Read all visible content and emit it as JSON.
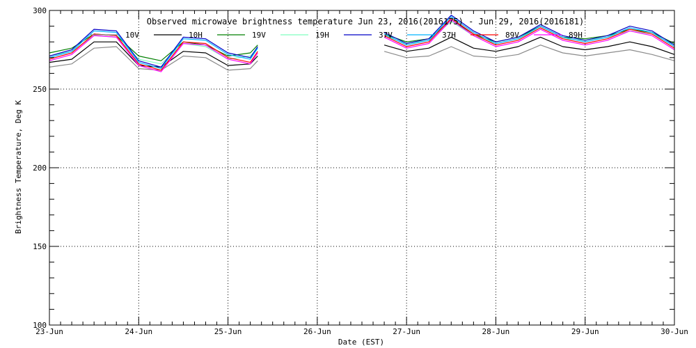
{
  "chart_data": {
    "type": "line",
    "title": "Observed microwave brightness temperature Jun 23, 2016(2016175) - Jun 29, 2016(2016181)",
    "xlabel": "Date (EST)",
    "ylabel": "Brightness Temperature, Deg K",
    "x_ticks": [
      "23-Jun",
      "24-Jun",
      "25-Jun",
      "26-Jun",
      "27-Jun",
      "28-Jun",
      "29-Jun",
      "30-Jun"
    ],
    "xlim": [
      "2016-06-23",
      "2016-06-30"
    ],
    "ylim": [
      100,
      300
    ],
    "y_ticks": [
      100,
      150,
      200,
      250,
      300
    ],
    "grid": true,
    "legend_position": "top",
    "series": [
      {
        "name": "10V",
        "color": "#8a8a8a",
        "x": [
          "2016-06-23T00:00",
          "2016-06-23T06:00",
          "2016-06-23T12:00",
          "2016-06-23T18:00",
          "2016-06-24T00:00",
          "2016-06-24T06:00",
          "2016-06-24T12:00",
          "2016-06-24T18:00",
          "2016-06-25T00:00",
          "2016-06-25T06:00",
          "2016-06-25T08:00",
          null,
          "2016-06-26T18:00",
          "2016-06-27T00:00",
          "2016-06-27T06:00",
          "2016-06-27T12:00",
          "2016-06-27T18:00",
          "2016-06-28T00:00",
          "2016-06-28T06:00",
          "2016-06-28T12:00",
          "2016-06-28T18:00",
          "2016-06-29T00:00",
          "2016-06-29T06:00",
          "2016-06-29T12:00",
          "2016-06-29T18:00",
          "2016-06-30T00:00"
        ],
        "values": [
          264,
          266,
          276,
          277,
          263,
          262,
          271,
          270,
          262,
          263,
          268,
          null,
          274,
          270,
          271,
          277,
          271,
          270,
          272,
          278,
          273,
          271,
          273,
          275,
          272,
          268
        ]
      },
      {
        "name": "10H",
        "color": "#000000",
        "x": [
          "2016-06-23T00:00",
          "2016-06-23T06:00",
          "2016-06-23T12:00",
          "2016-06-23T18:00",
          "2016-06-24T00:00",
          "2016-06-24T06:00",
          "2016-06-24T12:00",
          "2016-06-24T18:00",
          "2016-06-25T00:00",
          "2016-06-25T06:00",
          "2016-06-25T08:00",
          null,
          "2016-06-26T18:00",
          "2016-06-27T00:00",
          "2016-06-27T06:00",
          "2016-06-27T12:00",
          "2016-06-27T18:00",
          "2016-06-28T00:00",
          "2016-06-28T06:00",
          "2016-06-28T12:00",
          "2016-06-28T18:00",
          "2016-06-29T00:00",
          "2016-06-29T06:00",
          "2016-06-29T12:00",
          "2016-06-29T18:00",
          "2016-06-30T00:00"
        ],
        "values": [
          267,
          269,
          280,
          280,
          265,
          264,
          274,
          273,
          265,
          266,
          271,
          null,
          278,
          274,
          276,
          283,
          276,
          274,
          277,
          283,
          277,
          275,
          277,
          280,
          277,
          272
        ]
      },
      {
        "name": "19V",
        "color": "#007f00",
        "x": [
          "2016-06-23T00:00",
          "2016-06-23T06:00",
          "2016-06-23T12:00",
          "2016-06-23T18:00",
          "2016-06-24T00:00",
          "2016-06-24T06:00",
          "2016-06-24T12:00",
          "2016-06-24T18:00",
          "2016-06-25T00:00",
          "2016-06-25T06:00",
          "2016-06-25T08:00",
          null,
          "2016-06-26T18:00",
          "2016-06-27T00:00",
          "2016-06-27T06:00",
          "2016-06-27T12:00",
          "2016-06-27T18:00",
          "2016-06-28T00:00",
          "2016-06-28T06:00",
          "2016-06-28T12:00",
          "2016-06-28T18:00",
          "2016-06-29T00:00",
          "2016-06-29T06:00",
          "2016-06-29T12:00",
          "2016-06-29T18:00",
          "2016-06-30T00:00"
        ],
        "values": [
          273,
          276,
          285,
          284,
          271,
          268,
          280,
          278,
          271,
          273,
          278,
          null,
          285,
          280,
          282,
          294,
          285,
          280,
          283,
          290,
          283,
          282,
          284,
          288,
          286,
          279
        ]
      },
      {
        "name": "19H",
        "color": "#7fffbf",
        "x": [
          "2016-06-23T00:00",
          "2016-06-23T06:00",
          "2016-06-23T12:00",
          "2016-06-23T18:00",
          "2016-06-24T00:00",
          "2016-06-24T06:00",
          "2016-06-24T12:00",
          "2016-06-24T18:00",
          "2016-06-25T00:00",
          "2016-06-25T06:00",
          "2016-06-25T08:00",
          null,
          "2016-06-26T18:00",
          "2016-06-27T00:00",
          "2016-06-27T06:00",
          "2016-06-27T12:00",
          "2016-06-27T18:00",
          "2016-06-28T00:00",
          "2016-06-28T06:00",
          "2016-06-28T12:00",
          "2016-06-28T18:00",
          "2016-06-29T00:00",
          "2016-06-29T06:00",
          "2016-06-29T12:00",
          "2016-06-29T18:00",
          "2016-06-30T00:00"
        ],
        "values": [
          271,
          274,
          284,
          283,
          269,
          266,
          279,
          277,
          269,
          271,
          276,
          null,
          284,
          279,
          281,
          293,
          284,
          279,
          282,
          289,
          282,
          281,
          283,
          287,
          285,
          278
        ]
      },
      {
        "name": "37V",
        "color": "#0000c8",
        "x": [
          "2016-06-23T00:00",
          "2016-06-23T06:00",
          "2016-06-23T12:00",
          "2016-06-23T18:00",
          "2016-06-24T00:00",
          "2016-06-24T06:00",
          "2016-06-24T12:00",
          "2016-06-24T18:00",
          "2016-06-25T00:00",
          "2016-06-25T06:00",
          "2016-06-25T08:00",
          null,
          "2016-06-26T18:00",
          "2016-06-27T00:00",
          "2016-06-27T06:00",
          "2016-06-27T12:00",
          "2016-06-27T18:00",
          "2016-06-28T00:00",
          "2016-06-28T06:00",
          "2016-06-28T12:00",
          "2016-06-28T18:00",
          "2016-06-29T00:00",
          "2016-06-29T06:00",
          "2016-06-29T12:00",
          "2016-06-29T18:00",
          "2016-06-30T00:00"
        ],
        "values": [
          271,
          275,
          288,
          287,
          268,
          264,
          283,
          282,
          273,
          270,
          277,
          null,
          286,
          279,
          282,
          297,
          287,
          280,
          283,
          291,
          284,
          281,
          284,
          290,
          287,
          278
        ]
      },
      {
        "name": "37H",
        "color": "#00b4ff",
        "x": [
          "2016-06-23T00:00",
          "2016-06-23T06:00",
          "2016-06-23T12:00",
          "2016-06-23T18:00",
          "2016-06-24T00:00",
          "2016-06-24T06:00",
          "2016-06-24T12:00",
          "2016-06-24T18:00",
          "2016-06-25T00:00",
          "2016-06-25T06:00",
          "2016-06-25T08:00",
          null,
          "2016-06-26T18:00",
          "2016-06-27T00:00",
          "2016-06-27T06:00",
          "2016-06-27T12:00",
          "2016-06-27T18:00",
          "2016-06-28T00:00",
          "2016-06-28T06:00",
          "2016-06-28T12:00",
          "2016-06-28T18:00",
          "2016-06-29T00:00",
          "2016-06-29T06:00",
          "2016-06-29T12:00",
          "2016-06-29T18:00",
          "2016-06-30T00:00"
        ],
        "values": [
          270,
          274,
          287,
          286,
          267,
          263,
          282,
          281,
          272,
          269,
          276,
          null,
          285,
          278,
          281,
          296,
          286,
          279,
          282,
          290,
          283,
          280,
          283,
          289,
          286,
          277
        ]
      },
      {
        "name": "89V",
        "color": "#ff0000",
        "x": [
          "2016-06-23T00:00",
          "2016-06-23T06:00",
          "2016-06-23T12:00",
          "2016-06-23T18:00",
          "2016-06-24T00:00",
          "2016-06-24T06:00",
          "2016-06-24T12:00",
          "2016-06-24T18:00",
          "2016-06-25T00:00",
          "2016-06-25T06:00",
          "2016-06-25T08:00",
          null,
          "2016-06-26T18:00",
          "2016-06-27T00:00",
          "2016-06-27T06:00",
          "2016-06-27T12:00",
          "2016-06-27T18:00",
          "2016-06-28T00:00",
          "2016-06-28T06:00",
          "2016-06-28T12:00",
          "2016-06-28T18:00",
          "2016-06-29T00:00",
          "2016-06-29T06:00",
          "2016-06-29T12:00",
          "2016-06-29T18:00",
          "2016-06-30T00:00"
        ],
        "values": [
          269,
          273,
          285,
          284,
          266,
          262,
          280,
          279,
          270,
          267,
          274,
          null,
          284,
          277,
          280,
          295,
          285,
          278,
          281,
          289,
          282,
          279,
          282,
          288,
          285,
          276
        ]
      },
      {
        "name": "89H",
        "color": "#ff00ff",
        "x": [
          "2016-06-23T00:00",
          "2016-06-23T06:00",
          "2016-06-23T12:00",
          "2016-06-23T18:00",
          "2016-06-24T00:00",
          "2016-06-24T06:00",
          "2016-06-24T12:00",
          "2016-06-24T18:00",
          "2016-06-25T00:00",
          "2016-06-25T06:00",
          "2016-06-25T08:00",
          null,
          "2016-06-26T18:00",
          "2016-06-27T00:00",
          "2016-06-27T06:00",
          "2016-06-27T12:00",
          "2016-06-27T18:00",
          "2016-06-28T00:00",
          "2016-06-28T06:00",
          "2016-06-28T12:00",
          "2016-06-28T18:00",
          "2016-06-29T00:00",
          "2016-06-29T06:00",
          "2016-06-29T12:00",
          "2016-06-29T18:00",
          "2016-06-30T00:00"
        ],
        "values": [
          268,
          272,
          284,
          283,
          265,
          261,
          279,
          278,
          269,
          266,
          273,
          null,
          283,
          276,
          279,
          294,
          284,
          277,
          280,
          288,
          281,
          278,
          281,
          287,
          284,
          275
        ]
      }
    ]
  }
}
